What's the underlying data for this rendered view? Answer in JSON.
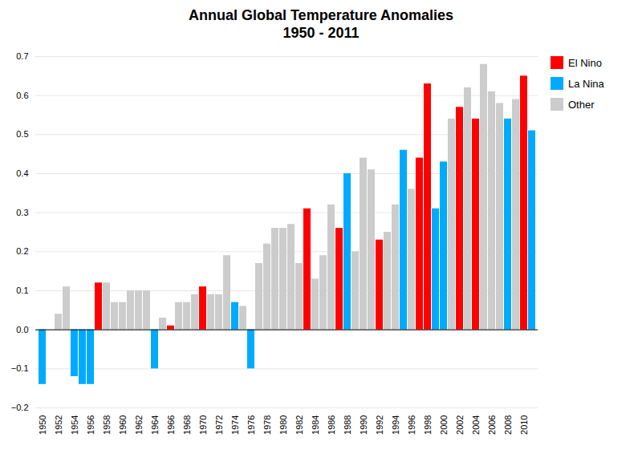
{
  "chart_data": {
    "type": "bar",
    "title": "Annual Global Temperature Anomalies\n1950 - 2011",
    "categories": [
      "1950",
      null,
      "1952",
      null,
      "1954",
      null,
      "1956",
      null,
      "1958",
      null,
      "1960",
      null,
      "1962",
      null,
      "1964",
      null,
      "1966",
      null,
      "1968",
      null,
      "1970",
      null,
      "1972",
      null,
      "1974",
      null,
      "1976",
      null,
      "1978",
      null,
      "1980",
      null,
      "1982",
      null,
      "1984",
      null,
      "1986",
      null,
      "1988",
      null,
      "1990",
      null,
      "1992",
      null,
      "1994",
      null,
      "1996",
      null,
      "1998",
      null,
      "2000",
      null,
      "2002",
      null,
      "2004",
      null,
      "2006",
      null,
      "2008",
      null,
      "2010",
      null
    ],
    "series": [
      {
        "name": "El Nino",
        "color": "#ff0000",
        "values": [
          null,
          null,
          null,
          null,
          null,
          null,
          null,
          0.12,
          null,
          null,
          null,
          null,
          null,
          null,
          null,
          null,
          0.01,
          null,
          null,
          null,
          0.11,
          null,
          null,
          null,
          null,
          null,
          null,
          null,
          null,
          null,
          null,
          null,
          null,
          0.31,
          null,
          null,
          null,
          0.26,
          null,
          null,
          null,
          null,
          0.23,
          null,
          null,
          null,
          null,
          0.44,
          0.63,
          null,
          null,
          null,
          0.57,
          null,
          0.54,
          null,
          null,
          null,
          null,
          null,
          0.65,
          null
        ]
      },
      {
        "name": "La Nina",
        "color": "#00aaff",
        "values": [
          -0.14,
          null,
          null,
          null,
          -0.12,
          -0.14,
          -0.14,
          null,
          null,
          null,
          null,
          null,
          null,
          null,
          -0.1,
          null,
          null,
          null,
          null,
          null,
          null,
          null,
          null,
          null,
          0.07,
          null,
          -0.1,
          null,
          null,
          null,
          null,
          null,
          null,
          null,
          null,
          null,
          null,
          null,
          0.4,
          null,
          null,
          null,
          null,
          null,
          null,
          0.46,
          null,
          null,
          null,
          0.31,
          0.43,
          null,
          null,
          null,
          null,
          null,
          null,
          null,
          0.54,
          null,
          null,
          0.51
        ]
      },
      {
        "name": "Other",
        "color": "#cccccc",
        "values": [
          null,
          0.0,
          0.04,
          0.11,
          null,
          null,
          null,
          null,
          0.12,
          0.07,
          0.07,
          0.1,
          0.1,
          0.1,
          null,
          0.03,
          null,
          0.07,
          0.07,
          0.09,
          null,
          0.09,
          0.09,
          0.19,
          null,
          0.06,
          null,
          0.17,
          0.22,
          0.26,
          0.26,
          0.27,
          0.17,
          null,
          0.13,
          0.19,
          0.32,
          null,
          null,
          0.2,
          0.44,
          0.41,
          null,
          0.25,
          0.32,
          null,
          0.36,
          null,
          null,
          null,
          null,
          0.54,
          null,
          0.62,
          null,
          0.68,
          0.61,
          0.58,
          null,
          0.59,
          null,
          null
        ]
      }
    ],
    "stacked": true,
    "ylim": [
      -0.2,
      0.7
    ],
    "yticks": [
      -0.2,
      -0.1,
      {
        "value": 0,
        "label": "0.0"
      },
      0.1,
      0.2,
      0.3,
      0.4,
      0.5,
      0.6,
      0.7
    ],
    "grid": true,
    "legend": "upper right"
  }
}
